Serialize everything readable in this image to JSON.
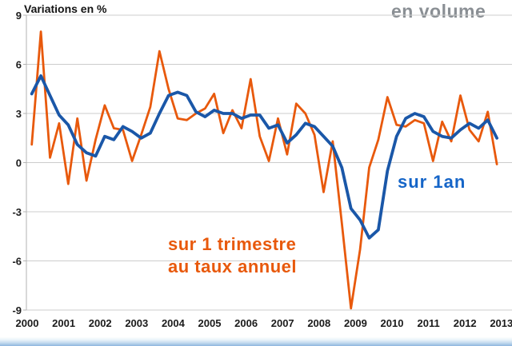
{
  "header": {
    "left_title": "Variations en %",
    "right_title": "en volume"
  },
  "annotations": {
    "blue_series_label": "sur 1an",
    "orange_series_label_line1": "sur 1 trimestre",
    "orange_series_label_line2": "au taux annuel"
  },
  "colors": {
    "blue_line": "#1a57a8",
    "blue_label": "#1565c8",
    "orange_line": "#e8590c",
    "orange_label": "#e8590c",
    "grid": "#cccccc",
    "axis": "#b3b3b3",
    "tick_text": "#1b1b1b",
    "right_title_gray": "#8a8f94",
    "bottom_strip_blue": "#8db6de"
  },
  "chart_data": {
    "type": "line",
    "title": "Variations en %",
    "subtitle": "en volume",
    "xlabel": "",
    "ylabel": "Variations en %",
    "ylim": [
      -9,
      9
    ],
    "yticks": [
      9,
      6,
      3,
      0,
      -3,
      -6,
      -9
    ],
    "xticks": [
      "2000",
      "2001",
      "2002",
      "2003",
      "2004",
      "2005",
      "2006",
      "2007",
      "2008",
      "2009",
      "2010",
      "2011",
      "2012",
      "2013"
    ],
    "grid": "horizontal",
    "legend_position": "inline-annotations",
    "frequency": "quarterly",
    "categories": [
      "2000Q1",
      "2000Q2",
      "2000Q3",
      "2000Q4",
      "2001Q1",
      "2001Q2",
      "2001Q3",
      "2001Q4",
      "2002Q1",
      "2002Q2",
      "2002Q3",
      "2002Q4",
      "2003Q1",
      "2003Q2",
      "2003Q3",
      "2003Q4",
      "2004Q1",
      "2004Q2",
      "2004Q3",
      "2004Q4",
      "2005Q1",
      "2005Q2",
      "2005Q3",
      "2005Q4",
      "2006Q1",
      "2006Q2",
      "2006Q3",
      "2006Q4",
      "2007Q1",
      "2007Q2",
      "2007Q3",
      "2007Q4",
      "2008Q1",
      "2008Q2",
      "2008Q3",
      "2008Q4",
      "2009Q1",
      "2009Q2",
      "2009Q3",
      "2009Q4",
      "2010Q1",
      "2010Q2",
      "2010Q3",
      "2010Q4",
      "2011Q1",
      "2011Q2",
      "2011Q3",
      "2011Q4",
      "2012Q1",
      "2012Q2",
      "2012Q3",
      "2012Q4"
    ],
    "series": [
      {
        "name": "sur 1 trimestre au taux annuel",
        "color": "#e8590c",
        "stroke_width": 2.8,
        "values": [
          1.1,
          8.0,
          0.3,
          2.4,
          -1.3,
          2.7,
          -1.1,
          1.4,
          3.5,
          2.1,
          2.0,
          0.1,
          1.7,
          3.4,
          6.8,
          4.5,
          2.7,
          2.6,
          3.0,
          3.3,
          4.2,
          1.8,
          3.2,
          2.1,
          5.1,
          1.6,
          0.1,
          2.7,
          0.5,
          3.6,
          3.0,
          1.7,
          -1.8,
          1.3,
          -3.7,
          -8.9,
          -5.3,
          -0.3,
          1.4,
          4.0,
          2.3,
          2.2,
          2.6,
          2.4,
          0.1,
          2.5,
          1.3,
          4.1,
          2.0,
          1.3,
          3.1,
          -0.1
        ]
      },
      {
        "name": "sur 1an",
        "color": "#1a57a8",
        "stroke_width": 3.8,
        "values": [
          4.2,
          5.3,
          4.1,
          2.9,
          2.3,
          1.1,
          0.6,
          0.4,
          1.6,
          1.4,
          2.2,
          1.9,
          1.5,
          1.8,
          3.0,
          4.1,
          4.3,
          4.1,
          3.1,
          2.8,
          3.2,
          3.0,
          3.0,
          2.7,
          2.9,
          2.9,
          2.1,
          2.3,
          1.2,
          1.7,
          2.4,
          2.2,
          1.6,
          1.0,
          -0.3,
          -2.8,
          -3.5,
          -4.6,
          -4.1,
          -0.5,
          1.6,
          2.7,
          3.0,
          2.8,
          1.9,
          1.6,
          1.5,
          2.0,
          2.4,
          2.1,
          2.6,
          1.5
        ]
      }
    ]
  }
}
